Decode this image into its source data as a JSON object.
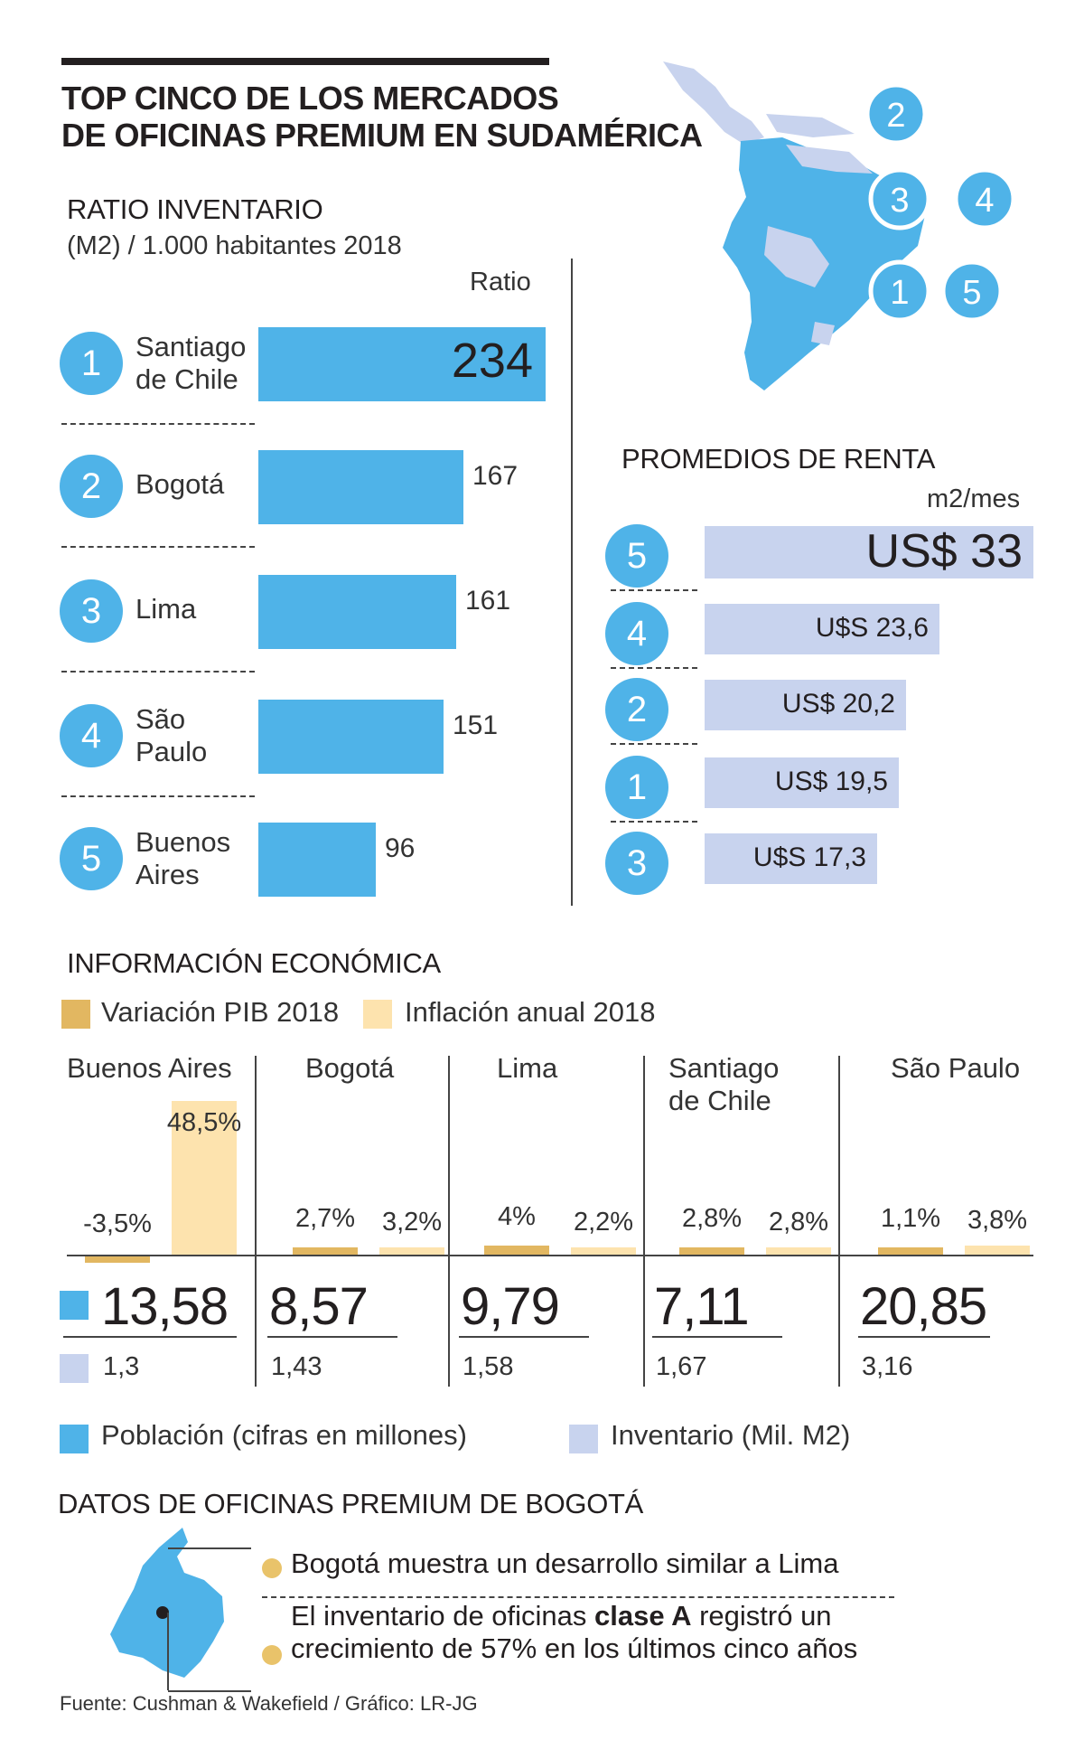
{
  "title_line1": "TOP CINCO DE LOS MERCADOS",
  "title_line2": "DE OFICINAS PREMIUM EN SUDAMÉRICA",
  "colors": {
    "blue": "#4fb3e8",
    "lavender": "#c8d3ee",
    "gold": "#e2b761",
    "cream": "#fde3ae",
    "dot": "#e9c36a"
  },
  "map": {
    "labels": [
      "2",
      "3",
      "4",
      "1",
      "5"
    ]
  },
  "chart_data": [
    {
      "type": "bar",
      "title": "RATIO INVENTARIO",
      "subtitle": "(M2) / 1.000 habitantes 2018",
      "value_header": "Ratio",
      "ranks": [
        "1",
        "2",
        "3",
        "4",
        "5"
      ],
      "categories": [
        "Santiago de Chile",
        "Bogotá",
        "Lima",
        "São Paulo",
        "Buenos Aires"
      ],
      "category_lines": [
        [
          "Santiago",
          "de Chile"
        ],
        [
          "Bogotá"
        ],
        [
          "Lima"
        ],
        [
          "São",
          "Paulo"
        ],
        [
          "Buenos",
          "Aires"
        ]
      ],
      "values": [
        234,
        167,
        161,
        151,
        96
      ],
      "value_labels": [
        "234",
        "167",
        "161",
        "151",
        "96"
      ]
    },
    {
      "type": "bar",
      "title": "PROMEDIOS DE RENTA",
      "unit": "m2/mes",
      "ranks": [
        "5",
        "4",
        "2",
        "1",
        "3"
      ],
      "values": [
        33,
        23.6,
        20.2,
        19.5,
        17.3
      ],
      "value_labels": [
        "US$ 33",
        "U$S 23,6",
        "US$ 20,2",
        "US$ 19,5",
        "U$S 17,3"
      ]
    },
    {
      "type": "bar",
      "title": "INFORMACIÓN ECONÓMICA",
      "legend": [
        "Variación PIB 2018",
        "Inflación anual 2018"
      ],
      "categories": [
        "Buenos Aires",
        "Bogotá",
        "Lima",
        "Santiago de Chile",
        "São Paulo"
      ],
      "category_lines": [
        [
          "Buenos Aires"
        ],
        [
          "Bogotá"
        ],
        [
          "Lima"
        ],
        [
          "Santiago",
          "de Chile"
        ],
        [
          "São Paulo"
        ]
      ],
      "series": [
        {
          "name": "Variación PIB 2018",
          "values": [
            -3.5,
            2.7,
            4,
            2.8,
            1.1
          ],
          "labels": [
            "-3,5%",
            "2,7%",
            "4%",
            "2,8%",
            "1,1%"
          ]
        },
        {
          "name": "Inflación anual 2018",
          "values": [
            48.5,
            3.2,
            2.2,
            2.8,
            3.8
          ],
          "labels": [
            "48,5%",
            "3,2%",
            "2,2%",
            "2,8%",
            "3,8%"
          ]
        }
      ],
      "poblacion": [
        "13,58",
        "8,57",
        "9,79",
        "7,11",
        "20,85"
      ],
      "inventario": [
        "1,3",
        "1,43",
        "1,58",
        "1,67",
        "3,16"
      ],
      "legend_bottom": [
        "Población (cifras en millones)",
        "Inventario (Mil. M2)"
      ]
    }
  ],
  "bogota": {
    "title": "DATOS DE OFICINAS PREMIUM DE BOGOTÁ",
    "note1": "Bogotá muestra un desarrollo similar a Lima",
    "note2_pre": "El inventario de oficinas ",
    "note2_bold": "clase A",
    "note2_post": " registró un",
    "note2_line2": "crecimiento de 57% en los últimos cinco años"
  },
  "source": "Fuente: Cushman & Wakefield / Gráfico: LR-JG"
}
